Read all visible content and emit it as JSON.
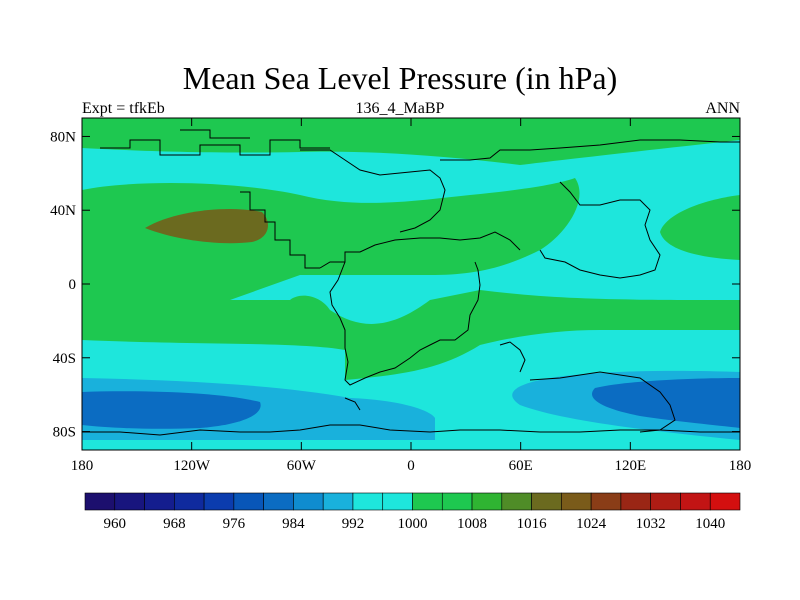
{
  "title": "Mean Sea Level Pressure (in hPa)",
  "subtitle_left": "Expt = tfkEb",
  "subtitle_center": "136_4_MaBP",
  "subtitle_right": "ANN",
  "colors": {
    "band_lt_blue": "#19b1dc",
    "band_blue": "#0b6cc2",
    "band_cyan": "#1ee6dc",
    "band_green": "#1ec850",
    "band_olive": "#6b6a1f",
    "band_brown": "#7a3c1d",
    "coast": "#000000"
  },
  "map": {
    "x_ticks": [
      "180",
      "120W",
      "60W",
      "0",
      "60E",
      "120E",
      "180"
    ],
    "y_ticks": [
      "80N",
      "40N",
      "0",
      "40S",
      "80S"
    ],
    "lon_values": [
      -180,
      -120,
      -60,
      0,
      60,
      120,
      180
    ],
    "lat_values": [
      80,
      40,
      0,
      -40,
      -80
    ],
    "lat_range": [
      -90,
      90
    ],
    "lon_range": [
      -180,
      180
    ]
  },
  "colorbar": {
    "levels": [
      "960",
      "968",
      "976",
      "984",
      "992",
      "1000",
      "1008",
      "1016",
      "1024",
      "1032",
      "1040"
    ],
    "colors": [
      "#1c0f6e",
      "#18157e",
      "#141d8e",
      "#0f2a9e",
      "#0b3cae",
      "#0856b8",
      "#0b6cc2",
      "#0f8ccf",
      "#19b1dc",
      "#1ee6dc",
      "#1ee6dc",
      "#1ec850",
      "#1ec850",
      "#2fb432",
      "#4f8c27",
      "#6b6a1f",
      "#7a5b1a",
      "#8a3d17",
      "#9a2615",
      "#ae1c14",
      "#c21414",
      "#d40f0f"
    ]
  }
}
